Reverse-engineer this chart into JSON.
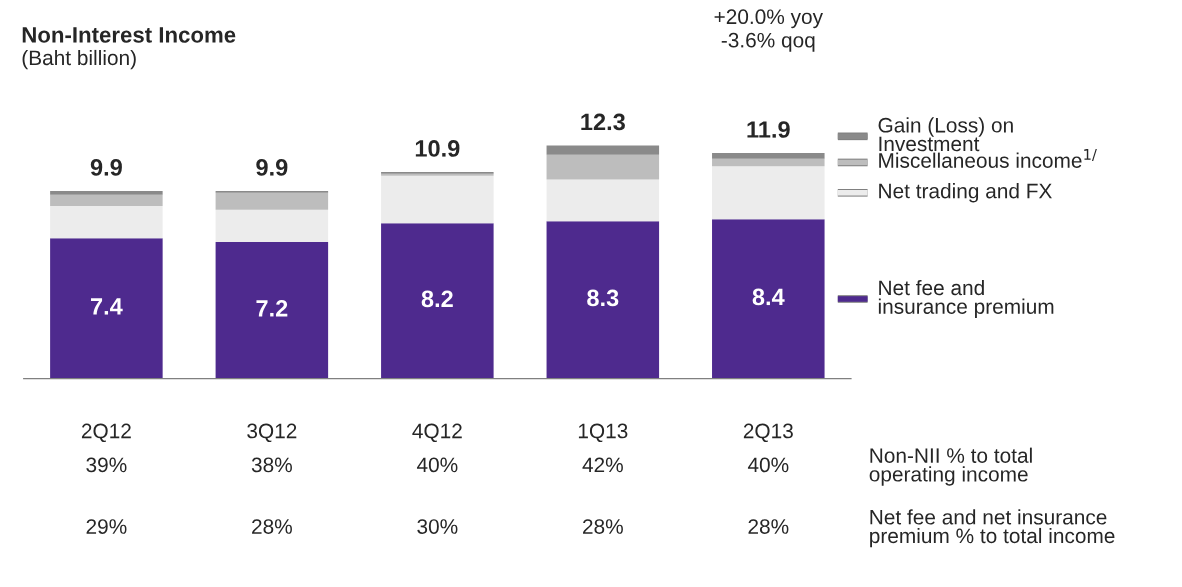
{
  "chart_data": {
    "type": "bar",
    "stacked": true,
    "title": "Non-Interest Income",
    "subtitle": "(Baht billion)",
    "categories": [
      "2Q12",
      "3Q12",
      "4Q12",
      "1Q13",
      "2Q13"
    ],
    "series": [
      {
        "name": "Net fee and\ninsurance premium",
        "color": "#4e2a8e",
        "values": [
          7.4,
          7.2,
          8.2,
          8.3,
          8.4
        ],
        "value_labels": [
          "7.4",
          "7.2",
          "8.2",
          "8.3",
          "8.4"
        ]
      },
      {
        "name": "Net trading and FX",
        "color": "#ececec",
        "values": [
          1.7,
          1.7,
          2.5,
          2.2,
          2.8
        ]
      },
      {
        "name": "Miscellaneous income$^{1/}$",
        "color": "#bdbdbd",
        "values": [
          0.6,
          0.9,
          0.1,
          1.3,
          0.4
        ]
      },
      {
        "name": "Gain (Loss) on\nInvestment",
        "color": "#8a8a8a",
        "values": [
          0.2,
          0.1,
          0.1,
          0.5,
          0.3
        ]
      }
    ],
    "totals": [
      "9.9",
      "9.9",
      "10.9",
      "12.3",
      "11.9"
    ],
    "annotations": [
      "+20.0% yoy",
      "-3.6% qoq",
      "39%",
      "38%",
      "40%",
      "42%",
      "40%",
      "Non-NII % to total\noperating income",
      "29%",
      "28%",
      "30%",
      "28%",
      "28%",
      "Net fee and net insurance\npremium % to total income"
    ],
    "legend": "right",
    "grid": false
  }
}
